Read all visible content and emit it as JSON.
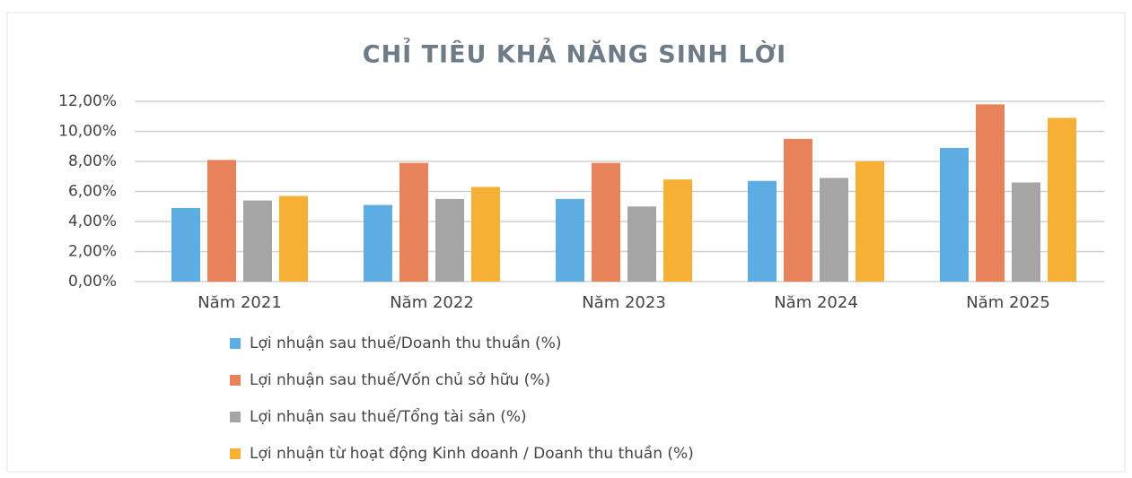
{
  "chart_data": {
    "type": "bar",
    "title": "CHỈ TIÊU KHẢ NĂNG SINH LỜI",
    "categories": [
      "Năm 2021",
      "Năm 2022",
      "Năm 2023",
      "Năm 2024",
      "Năm 2025"
    ],
    "series": [
      {
        "name": "Lợi nhuận sau thuế/Doanh thu thuần (%)",
        "color": "#5dade2",
        "values": [
          4.9,
          5.1,
          5.5,
          6.7,
          8.9
        ]
      },
      {
        "name": "Lợi nhuận sau thuế/Vốn chủ sở hữu (%)",
        "color": "#e8825a",
        "values": [
          8.1,
          7.9,
          7.9,
          9.5,
          11.8
        ]
      },
      {
        "name": "Lợi nhuận sau thuế/Tổng tài sản (%)",
        "color": "#a5a5a5",
        "values": [
          5.4,
          5.5,
          5.0,
          6.9,
          6.6
        ]
      },
      {
        "name": "Lợi nhuận từ hoạt động Kinh doanh / Doanh thu thuần (%)",
        "color": "#f5b035",
        "values": [
          5.7,
          6.3,
          6.8,
          8.0,
          10.9
        ]
      }
    ],
    "ylim": [
      0,
      12
    ],
    "yticks": [
      {
        "value": 0,
        "label": "0,00%"
      },
      {
        "value": 2,
        "label": "2,00%"
      },
      {
        "value": 4,
        "label": "4,00%"
      },
      {
        "value": 6,
        "label": "6,00%"
      },
      {
        "value": 8,
        "label": "8,00%"
      },
      {
        "value": 10,
        "label": "10,00%"
      },
      {
        "value": 12,
        "label": "12,00%"
      }
    ],
    "grid": true,
    "legend": "bottom"
  }
}
